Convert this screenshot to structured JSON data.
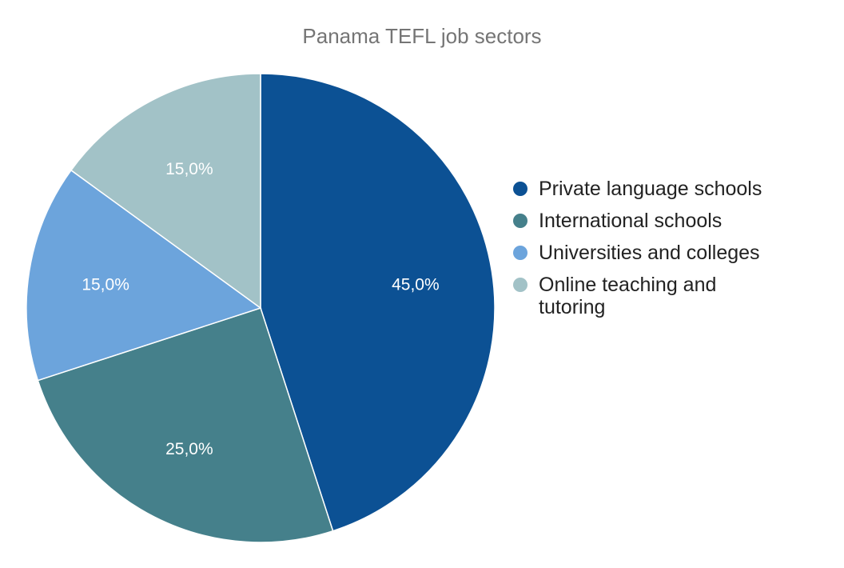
{
  "chart_data": {
    "type": "pie",
    "title": "Panama TEFL job sectors",
    "legend_position": "right",
    "slices": [
      {
        "name": "Private language schools",
        "value": 45.0,
        "label": "45,0%",
        "color": "#0c5194"
      },
      {
        "name": "International schools",
        "value": 25.0,
        "label": "25,0%",
        "color": "#45808b"
      },
      {
        "name": "Universities and colleges",
        "value": 15.0,
        "label": "15,0%",
        "color": "#6ca4dc"
      },
      {
        "name": "Online teaching and tutoring",
        "value": 15.0,
        "label": "15,0%",
        "color": "#a2c2c7"
      }
    ]
  }
}
